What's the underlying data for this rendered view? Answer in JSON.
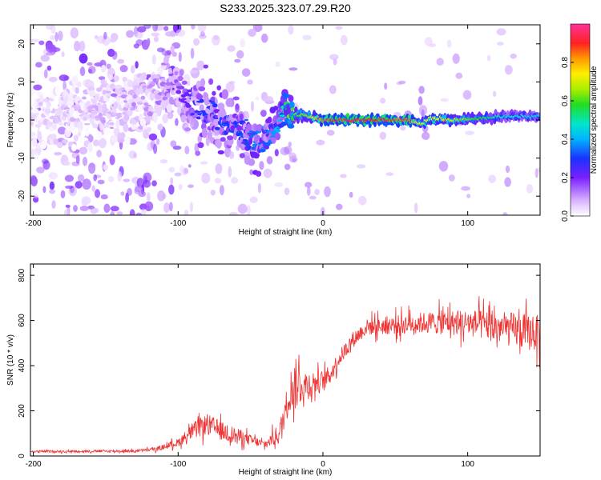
{
  "chart_data": [
    {
      "type": "heatmap",
      "title": "S233.2025.323.07.29.R20",
      "xlabel": "Height of straight line (km)",
      "ylabel": "Frequency (Hz)",
      "xlim": [
        -202,
        150
      ],
      "ylim": [
        -25,
        25
      ],
      "xticks": [
        -200,
        -100,
        0,
        100
      ],
      "yticks": [
        -20,
        -10,
        0,
        10,
        20
      ],
      "colorbar": {
        "label": "Normalized spectral amplitude",
        "range": [
          0,
          1
        ],
        "ticks": [
          "0.0",
          "0.2",
          "0.4",
          "0.6",
          "0.8"
        ],
        "tick_values": [
          0,
          0.2,
          0.4,
          0.6,
          0.8
        ]
      },
      "ridge": {
        "x": [
          -200,
          -150,
          -120,
          -105,
          -90,
          -75,
          -60,
          -45,
          -38,
          -32,
          -27,
          -24,
          -20,
          -10,
          0,
          10,
          20,
          40,
          60,
          68,
          75,
          90,
          110,
          130,
          150
        ],
        "frequency": [
          0,
          3,
          6,
          9,
          4,
          1,
          -2,
          -6,
          -5,
          -2,
          3,
          2.5,
          1.5,
          1,
          0,
          0,
          0,
          0,
          0,
          -1,
          0.5,
          0,
          0.5,
          1,
          1
        ],
        "peak_amplitude": [
          0.05,
          0.08,
          0.1,
          0.15,
          0.25,
          0.3,
          0.3,
          0.35,
          0.35,
          0.4,
          0.5,
          0.6,
          0.6,
          0.65,
          0.85,
          0.9,
          0.92,
          0.9,
          0.85,
          0.7,
          0.75,
          0.7,
          0.55,
          0.45,
          0.45
        ]
      }
    },
    {
      "type": "line",
      "xlabel": "Height of straight line (km)",
      "ylabel": "SNR (10 * v/v)",
      "xlim": [
        -202,
        150
      ],
      "ylim": [
        0,
        850
      ],
      "xticks": [
        -200,
        -100,
        0,
        100
      ],
      "yticks": [
        0,
        200,
        400,
        600,
        800
      ],
      "color": "#ee3333",
      "envelope": {
        "x": [
          -200,
          -130,
          -115,
          -100,
          -90,
          -80,
          -70,
          -60,
          -50,
          -40,
          -30,
          -25,
          -22,
          -18,
          -15,
          -10,
          0,
          5,
          10,
          20,
          30,
          50,
          70,
          100,
          120,
          150
        ],
        "mean": [
          20,
          22,
          30,
          60,
          110,
          140,
          110,
          90,
          70,
          50,
          100,
          230,
          300,
          320,
          310,
          320,
          330,
          360,
          420,
          510,
          570,
          580,
          590,
          590,
          570,
          540
        ],
        "spread": [
          8,
          10,
          15,
          30,
          60,
          80,
          70,
          60,
          40,
          30,
          80,
          120,
          150,
          200,
          130,
          100,
          80,
          70,
          60,
          60,
          60,
          70,
          80,
          100,
          120,
          140
        ]
      }
    }
  ]
}
